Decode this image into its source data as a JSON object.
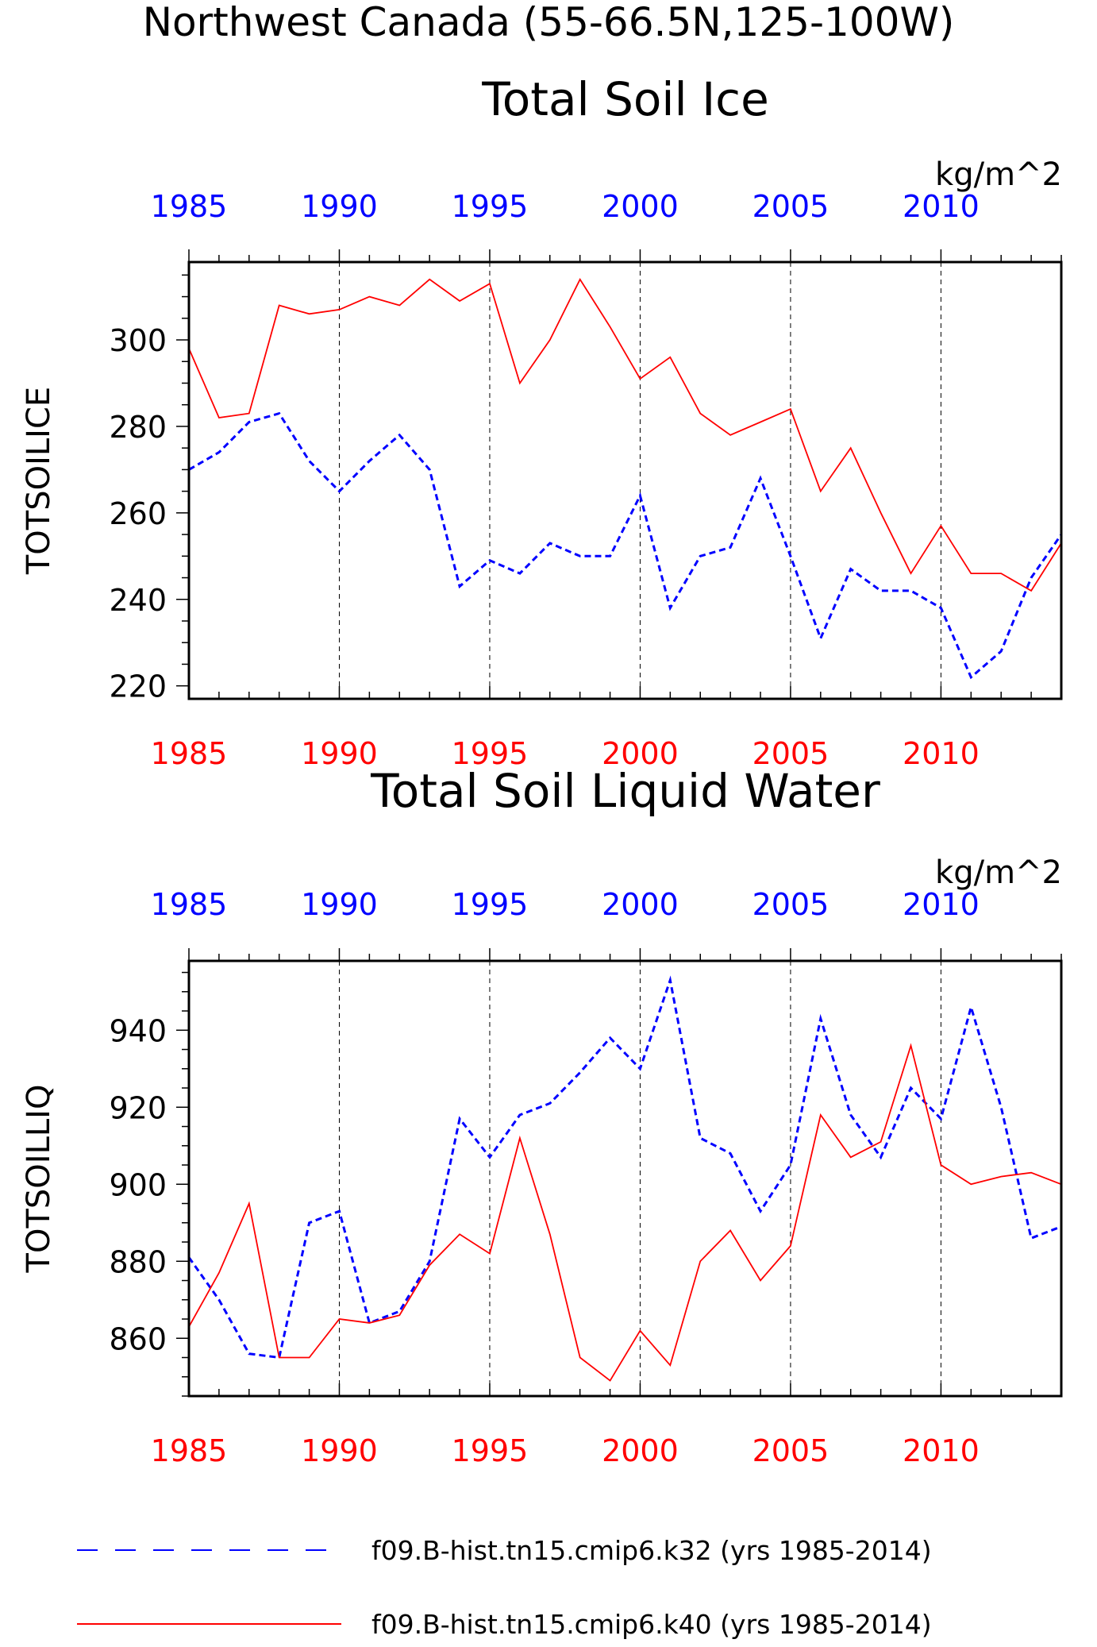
{
  "page": {
    "title": "Northwest Canada (55-66.5N,125-100W)"
  },
  "legend": [
    {
      "label": "f09.B-hist.tn15.cmip6.k32 (yrs 1985-2014)",
      "color": "#0000ff",
      "style": "dashed"
    },
    {
      "label": "f09.B-hist.tn15.cmip6.k40 (yrs 1985-2014)",
      "color": "#ff0000",
      "style": "solid"
    }
  ],
  "chart_data": [
    {
      "type": "line",
      "title": "Total Soil Ice",
      "ylabel": "TOTSOILICE",
      "units": "kg/m^2",
      "xlim": [
        1985,
        2014
      ],
      "ylim": [
        217,
        318
      ],
      "yticks": [
        220,
        240,
        260,
        280,
        300
      ],
      "xticks": [
        1985,
        1990,
        1995,
        2000,
        2005,
        2010
      ],
      "xtick_labels_top": [
        "1985",
        "1990",
        "1995",
        "2000",
        "2005",
        "2010"
      ],
      "xtick_labels_bottom": [
        "1985",
        "1990",
        "1995",
        "2000",
        "2005",
        "2010"
      ],
      "grid": "dashed vertical at labeled years",
      "x": [
        1985,
        1986,
        1987,
        1988,
        1989,
        1990,
        1991,
        1992,
        1993,
        1994,
        1995,
        1996,
        1997,
        1998,
        1999,
        2000,
        2001,
        2002,
        2003,
        2004,
        2005,
        2006,
        2007,
        2008,
        2009,
        2010,
        2011,
        2012,
        2013,
        2014
      ],
      "series": [
        {
          "color": "#0000ff",
          "style": "dashed",
          "values": [
            270,
            274,
            281,
            283,
            272,
            265,
            272,
            278,
            270,
            243,
            249,
            246,
            253,
            250,
            250,
            264,
            238,
            250,
            252,
            268,
            250,
            231,
            247,
            242,
            242,
            238,
            222,
            228,
            245,
            255
          ]
        },
        {
          "color": "#ff0000",
          "style": "solid",
          "values": [
            298,
            282,
            283,
            308,
            306,
            307,
            310,
            308,
            314,
            309,
            313,
            290,
            300,
            314,
            303,
            291,
            296,
            283,
            278,
            281,
            284,
            265,
            275,
            260,
            246,
            257,
            246,
            246,
            242,
            253
          ]
        }
      ]
    },
    {
      "type": "line",
      "title": "Total Soil Liquid Water",
      "ylabel": "TOTSOILLIQ",
      "units": "kg/m^2",
      "xlim": [
        1985,
        2014
      ],
      "ylim": [
        845,
        958
      ],
      "yticks": [
        860,
        880,
        900,
        920,
        940
      ],
      "xticks": [
        1985,
        1990,
        1995,
        2000,
        2005,
        2010
      ],
      "xtick_labels_top": [
        "1985",
        "1990",
        "1995",
        "2000",
        "2005",
        "2010"
      ],
      "xtick_labels_bottom": [
        "1985",
        "1990",
        "1995",
        "2000",
        "2005",
        "2010"
      ],
      "grid": "dashed vertical at labeled years",
      "x": [
        1985,
        1986,
        1987,
        1988,
        1989,
        1990,
        1991,
        1992,
        1993,
        1994,
        1995,
        1996,
        1997,
        1998,
        1999,
        2000,
        2001,
        2002,
        2003,
        2004,
        2005,
        2006,
        2007,
        2008,
        2009,
        2010,
        2011,
        2012,
        2013,
        2014
      ],
      "series": [
        {
          "color": "#0000ff",
          "style": "dashed",
          "values": [
            881,
            870,
            856,
            855,
            890,
            893,
            864,
            867,
            880,
            917,
            907,
            918,
            921,
            929,
            938,
            930,
            953,
            912,
            908,
            893,
            905,
            943,
            918,
            907,
            925,
            917,
            946,
            920,
            886,
            889
          ]
        },
        {
          "color": "#ff0000",
          "style": "solid",
          "values": [
            863,
            877,
            895,
            855,
            855,
            865,
            864,
            866,
            879,
            887,
            882,
            912,
            887,
            855,
            849,
            862,
            853,
            880,
            888,
            875,
            884,
            918,
            907,
            911,
            936,
            905,
            900,
            902,
            903,
            900
          ]
        }
      ]
    }
  ]
}
